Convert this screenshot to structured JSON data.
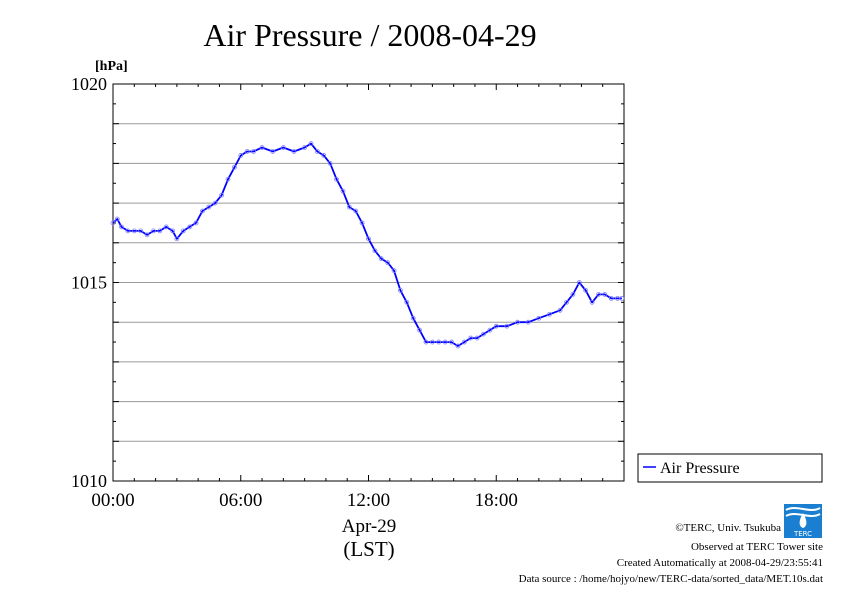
{
  "chart_data": {
    "type": "line",
    "title": "Air Pressure / 2008-04-29",
    "yunit": "[hPa]",
    "xlabel": "Apr-29",
    "xlabel2": "(LST)",
    "ylim": [
      1010,
      1020
    ],
    "xlim": [
      0,
      24
    ],
    "x_ticks": [
      "00:00",
      "06:00",
      "12:00",
      "18:00"
    ],
    "x_tick_values": [
      0,
      6,
      12,
      18
    ],
    "y_ticks": [
      "1010",
      "1015",
      "1020"
    ],
    "y_tick_values": [
      1010,
      1015,
      1020
    ],
    "y_gridlines": [
      1011,
      1012,
      1013,
      1014,
      1015,
      1016,
      1017,
      1018,
      1019
    ],
    "grid": true,
    "legend": "outside-right-bottom",
    "line_color": "#0000ff",
    "marker_color": "#8080ff",
    "series": [
      {
        "name": "Air Pressure",
        "x": [
          0,
          0.2,
          0.4,
          0.7,
          1.0,
          1.3,
          1.6,
          1.9,
          2.2,
          2.5,
          2.8,
          3.0,
          3.3,
          3.6,
          3.9,
          4.2,
          4.5,
          4.8,
          5.1,
          5.4,
          5.7,
          6.0,
          6.3,
          6.6,
          7.0,
          7.5,
          8.0,
          8.5,
          9.0,
          9.3,
          9.6,
          9.9,
          10.2,
          10.5,
          10.8,
          11.1,
          11.4,
          11.7,
          12.0,
          12.3,
          12.6,
          12.9,
          13.2,
          13.5,
          13.8,
          14.1,
          14.4,
          14.7,
          15.0,
          15.3,
          15.6,
          15.9,
          16.2,
          16.5,
          16.8,
          17.1,
          17.4,
          17.7,
          18.0,
          18.5,
          19.0,
          19.5,
          20.0,
          20.5,
          21.0,
          21.3,
          21.6,
          21.9,
          22.2,
          22.5,
          22.8,
          23.1,
          23.4,
          23.7,
          23.9
        ],
        "values": [
          1016.5,
          1016.6,
          1016.4,
          1016.3,
          1016.3,
          1016.3,
          1016.2,
          1016.3,
          1016.3,
          1016.4,
          1016.3,
          1016.1,
          1016.3,
          1016.4,
          1016.5,
          1016.8,
          1016.9,
          1017.0,
          1017.2,
          1017.6,
          1017.9,
          1018.2,
          1018.3,
          1018.3,
          1018.4,
          1018.3,
          1018.4,
          1018.3,
          1018.4,
          1018.5,
          1018.3,
          1018.2,
          1018.0,
          1017.6,
          1017.3,
          1016.9,
          1016.8,
          1016.5,
          1016.1,
          1015.8,
          1015.6,
          1015.5,
          1015.3,
          1014.8,
          1014.5,
          1014.1,
          1013.8,
          1013.5,
          1013.5,
          1013.5,
          1013.5,
          1013.5,
          1013.4,
          1013.5,
          1013.6,
          1013.6,
          1013.7,
          1013.8,
          1013.9,
          1013.9,
          1014.0,
          1014.0,
          1014.1,
          1014.2,
          1014.3,
          1014.5,
          1014.7,
          1015.0,
          1014.8,
          1014.5,
          1014.7,
          1014.7,
          1014.6,
          1014.6,
          1014.6
        ]
      }
    ]
  },
  "footer": {
    "credit": "©TERC, Univ. Tsukuba",
    "site": "Observed at TERC Tower site",
    "created": "Created Automatically at 2008-04-29/23:55:41",
    "source": "Data source : /home/hojyo/new/TERC-data/sorted_data/MET.10s.dat"
  },
  "logo": {
    "text": "TERC",
    "color": "#1a7fd1"
  }
}
